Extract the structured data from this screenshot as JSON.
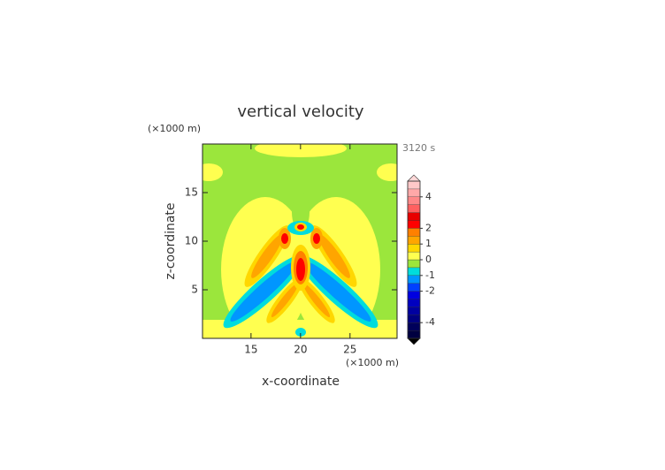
{
  "chart_data": {
    "type": "contour",
    "title": "vertical velocity",
    "time_label": "3120 s",
    "x_label": "x-coordinate",
    "y_label": "z-coordinate",
    "x_unit": "(×1000 m)",
    "y_unit": "(×1000 m)",
    "xlim": [
      10.1,
      29.75
    ],
    "xticks": [
      15,
      20,
      25
    ],
    "ylim": [
      0,
      20
    ],
    "yticks": [
      5,
      10,
      15
    ],
    "background_color": "#9be63c",
    "colorbar": {
      "clim": [
        -5,
        5
      ],
      "ticks": [
        -4,
        -2,
        -1,
        0,
        1,
        2,
        4
      ],
      "levels": [
        -5,
        -4.5,
        -4,
        -3.5,
        -3,
        -2.5,
        -2,
        -1.5,
        -1,
        -0.5,
        0,
        0.5,
        1,
        1.5,
        2,
        2.5,
        3,
        3.5,
        4,
        4.5,
        5
      ],
      "colors": [
        "#000040",
        "#00005a",
        "#000080",
        "#0000a0",
        "#0000c0",
        "#0000e0",
        "#0040ff",
        "#0096ff",
        "#00dcdc",
        "#9be63c",
        "#ffff50",
        "#ffd700",
        "#ffa500",
        "#ff8000",
        "#ff0000",
        "#e80000",
        "#ff6060",
        "#ff8888",
        "#ffa8a8",
        "#ffc8c8"
      ],
      "over_color": "#ffd8d8",
      "under_color": "#000000"
    }
  }
}
